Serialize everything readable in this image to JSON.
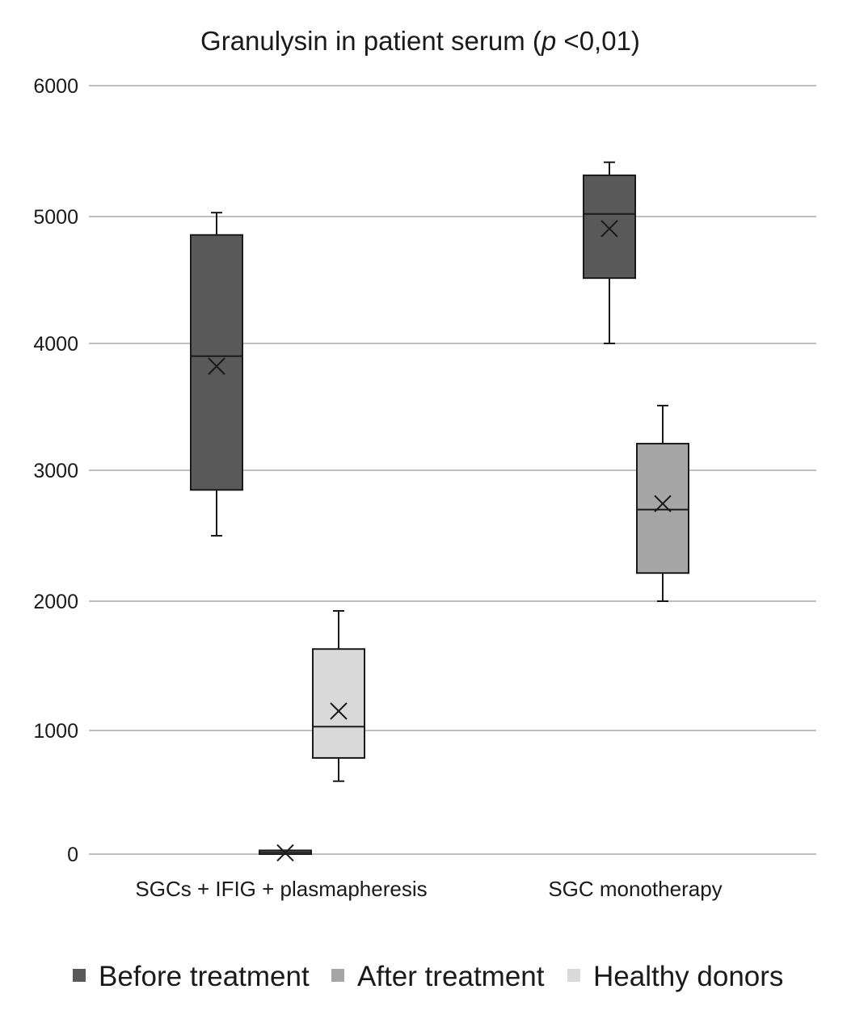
{
  "chart_data": {
    "type": "box",
    "title_prefix": "Granulysin in patient serum (",
    "title_p": "p",
    "title_suffix": " <0,01)",
    "xlabel": "",
    "ylabel": "",
    "ylim": [
      0,
      6000
    ],
    "yticks": [
      0,
      1000,
      2000,
      3000,
      4000,
      5000,
      6000
    ],
    "grid": true,
    "legend_position": "bottom",
    "categories": [
      "SGCs + IFIG + plasmapheresis",
      "SGC monotherapy"
    ],
    "series": [
      {
        "name": "Before treatment",
        "color": "#595959",
        "boxes": [
          {
            "min": 2500,
            "q1": 2850,
            "median": 3900,
            "q3": 4855,
            "max": 5030,
            "mean": 3820
          },
          {
            "min": 4000,
            "q1": 4515,
            "median": 5020,
            "q3": 5315,
            "max": 5415,
            "mean": 4905
          }
        ]
      },
      {
        "name": "After treatment",
        "color": "#a6a6a6",
        "boxes": [
          {
            "min": 0,
            "q1": 0,
            "median": 15,
            "q3": 30,
            "max": 30,
            "mean": 10
          },
          {
            "min": 2000,
            "q1": 2215,
            "median": 2700,
            "q3": 3210,
            "max": 3510,
            "mean": 2745
          }
        ]
      },
      {
        "name": "Healthy donors",
        "color": "#d9d9d9",
        "boxes": [
          {
            "min": 590,
            "q1": 778,
            "median": 1030,
            "q3": 1630,
            "max": 1925,
            "mean": 1150
          },
          null
        ]
      }
    ]
  }
}
